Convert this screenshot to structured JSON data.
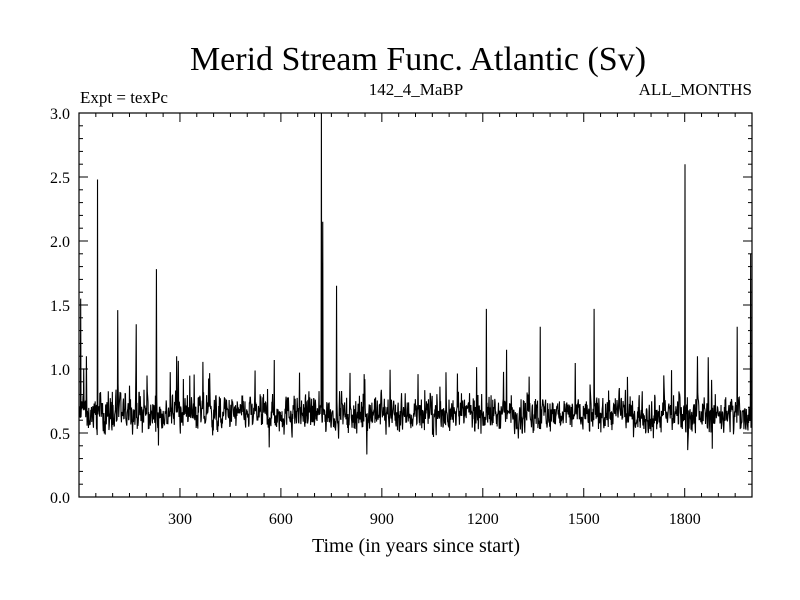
{
  "chart_data": {
    "type": "line",
    "title": "Merid Stream Func. Atlantic (Sv)",
    "subtitle_left": "Expt = texPc",
    "subtitle_center": "142_4_MaBP",
    "subtitle_right": "ALL_MONTHS",
    "xlabel": "Time (in years since start)",
    "ylabel": "",
    "xlim": [
      0,
      2000
    ],
    "ylim": [
      0.0,
      3.0
    ],
    "x_ticks": [
      300,
      600,
      900,
      1200,
      1500,
      1800
    ],
    "y_ticks": [
      0.0,
      0.5,
      1.0,
      1.5,
      2.0,
      2.5,
      3.0
    ],
    "x_tick_labels": [
      "300",
      "600",
      "900",
      "1200",
      "1500",
      "1800"
    ],
    "y_tick_labels": [
      "0.0",
      "0.5",
      "1.0",
      "1.5",
      "2.0",
      "2.5",
      "3.0"
    ],
    "grid": false,
    "line_color": "#000000",
    "series": [
      {
        "baseline_mean": 0.65,
        "typical_range": [
          0.4,
          0.95
        ],
        "spikes": [
          {
            "x": 5,
            "y": 1.55
          },
          {
            "x": 22,
            "y": 1.1
          },
          {
            "x": 55,
            "y": 2.48
          },
          {
            "x": 115,
            "y": 1.46
          },
          {
            "x": 170,
            "y": 1.35
          },
          {
            "x": 230,
            "y": 1.78
          },
          {
            "x": 290,
            "y": 1.1
          },
          {
            "x": 580,
            "y": 1.07
          },
          {
            "x": 720,
            "y": 3.0
          },
          {
            "x": 724,
            "y": 2.15
          },
          {
            "x": 765,
            "y": 1.65
          },
          {
            "x": 1210,
            "y": 1.47
          },
          {
            "x": 1270,
            "y": 1.15
          },
          {
            "x": 1370,
            "y": 1.33
          },
          {
            "x": 1530,
            "y": 1.47
          },
          {
            "x": 1800,
            "y": 2.6
          },
          {
            "x": 1955,
            "y": 1.33
          },
          {
            "x": 1995,
            "y": 1.9
          }
        ]
      }
    ]
  }
}
